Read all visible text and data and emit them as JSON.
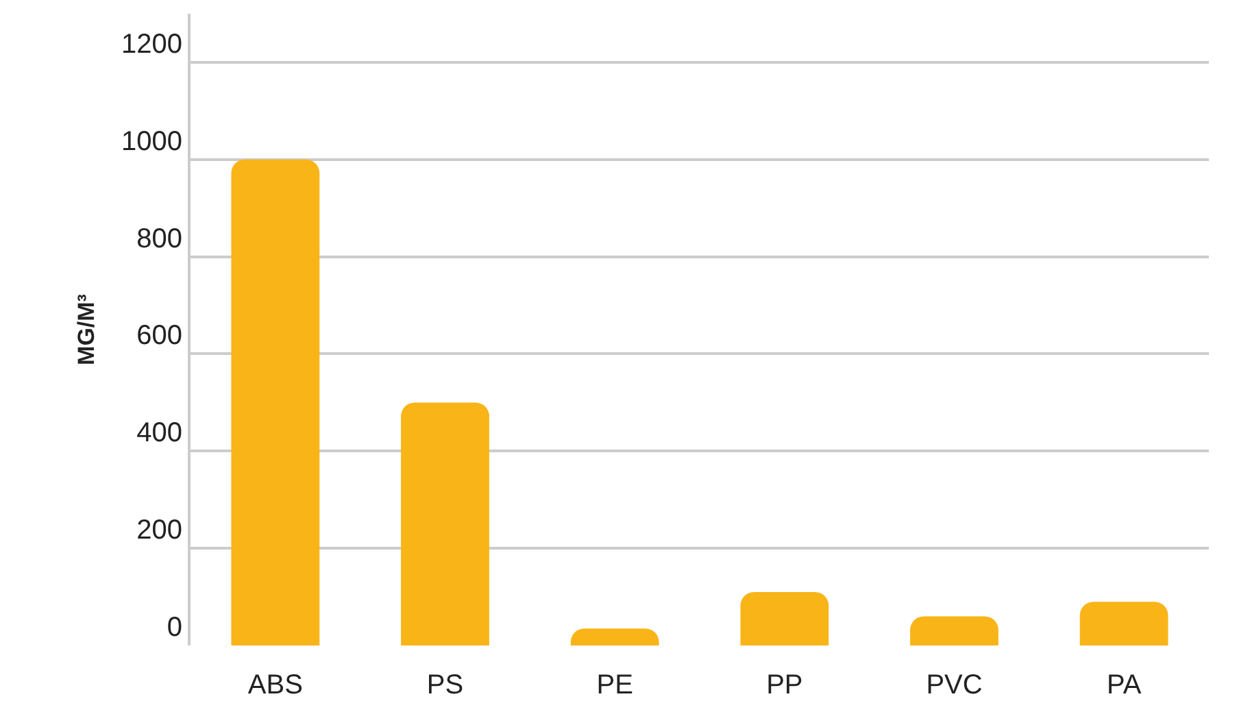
{
  "chart_data": {
    "type": "bar",
    "ylabel": "MG/M³",
    "categories": [
      "ABS",
      "PS",
      "PE",
      "PP",
      "PVC",
      "PA"
    ],
    "values": [
      1000,
      500,
      35,
      110,
      60,
      90
    ],
    "color": "#f9b418",
    "ylim": [
      0,
      1300
    ],
    "yticks": [
      0,
      200,
      400,
      600,
      800,
      1000,
      1200
    ],
    "grid": "y"
  }
}
